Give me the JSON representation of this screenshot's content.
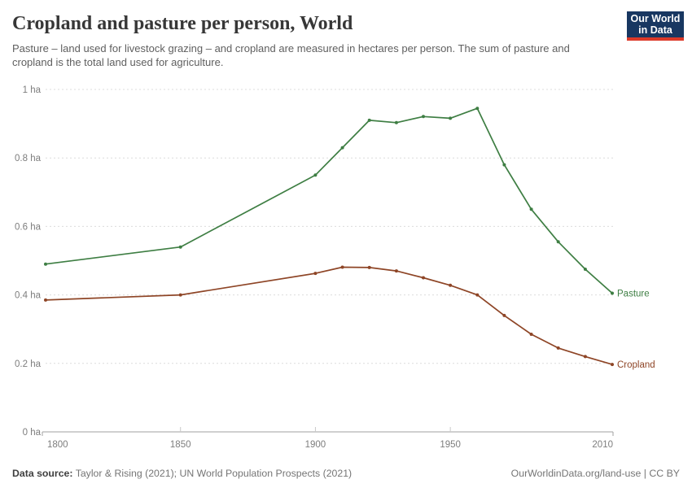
{
  "header": {
    "title": "Cropland and pasture per person, World",
    "subtitle": "Pasture – land used for livestock grazing – and cropland are measured in hectares per person. The sum of pasture and cropland is the total land used for agriculture.",
    "logo": {
      "line1": "Our World",
      "line2": "in Data"
    }
  },
  "colors": {
    "pasture_green": "#3e7e43",
    "cropland_brown": "#8e4526",
    "gridline": "#dcdcdc",
    "axis_line": "#a0a0a0",
    "tick_mark": "#c9c9c9",
    "tick_label": "#7d7d7d",
    "logo_background": "#183761",
    "logo_red_bar": "#dc3928"
  },
  "chart_data": {
    "type": "line",
    "title": "Cropland and pasture per person, World",
    "xlabel": "",
    "ylabel": "",
    "x": [
      1800,
      1850,
      1900,
      1910,
      1920,
      1930,
      1940,
      1950,
      1960,
      1970,
      1980,
      1990,
      2000,
      2010
    ],
    "series": [
      {
        "name": "Pasture",
        "color": "#3e7e43",
        "values": [
          0.49,
          0.54,
          0.75,
          0.83,
          0.91,
          0.903,
          0.921,
          0.916,
          0.945,
          0.78,
          0.65,
          0.555,
          0.475,
          0.405
        ]
      },
      {
        "name": "Cropland",
        "color": "#8e4526",
        "values": [
          0.385,
          0.4,
          0.463,
          0.481,
          0.48,
          0.47,
          0.45,
          0.428,
          0.4,
          0.34,
          0.285,
          0.245,
          0.22,
          0.197
        ]
      }
    ],
    "xlim": [
      1800,
      2010
    ],
    "ylim": [
      0,
      1
    ],
    "xticks": [
      {
        "value": 1800,
        "label": "1800"
      },
      {
        "value": 1850,
        "label": "1850"
      },
      {
        "value": 1900,
        "label": "1900"
      },
      {
        "value": 1950,
        "label": "1950"
      },
      {
        "value": 2010,
        "label": "2010"
      }
    ],
    "yticks": [
      {
        "value": 0,
        "label": "0 ha"
      },
      {
        "value": 0.2,
        "label": "0.2 ha"
      },
      {
        "value": 0.4,
        "label": "0.4 ha"
      },
      {
        "value": 0.6,
        "label": "0.6 ha"
      },
      {
        "value": 0.8,
        "label": "0.8 ha"
      },
      {
        "value": 1,
        "label": "1 ha"
      }
    ],
    "grid": "horizontal-dashed",
    "legend": "line-end-labels"
  },
  "footer": {
    "source_label": "Data source:",
    "source_text": " Taylor & Rising (2021); UN World Population Prospects (2021)",
    "credit": "OurWorldinData.org/land-use | CC BY"
  }
}
